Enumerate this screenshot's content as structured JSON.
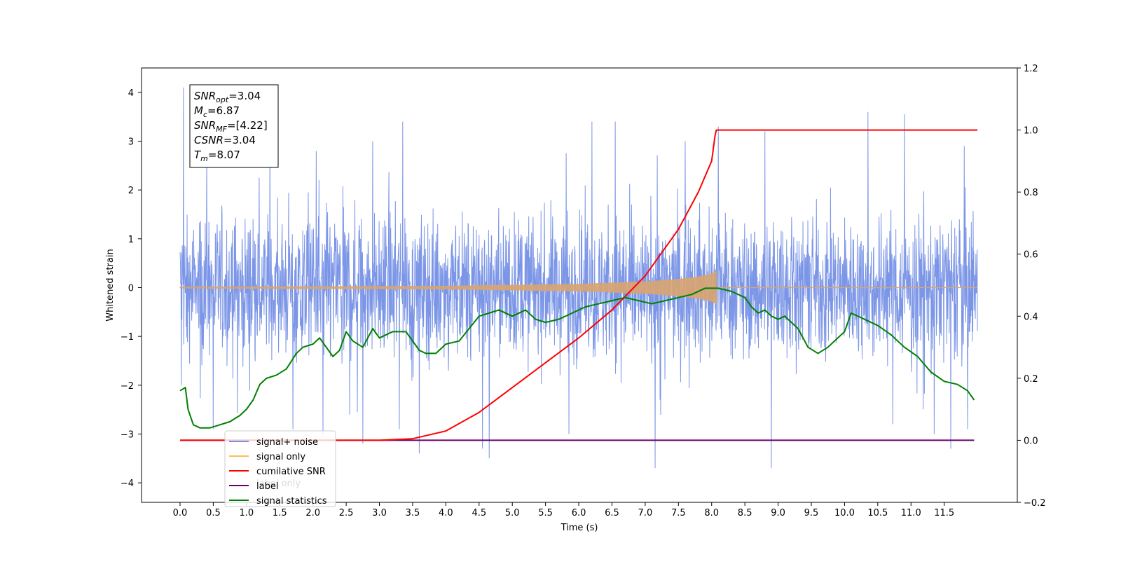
{
  "chart_data": {
    "type": "line",
    "xlabel": "Time (s)",
    "ylabel": "Whitened strain",
    "xlim": [
      -0.58,
      12.6
    ],
    "ylim": [
      -4.4,
      4.5
    ],
    "y2lim": [
      -0.2,
      1.2
    ],
    "x_ticks": [
      "0.0",
      "0.5",
      "1.0",
      "1.5",
      "2.0",
      "2.5",
      "3.0",
      "3.5",
      "4.0",
      "4.5",
      "5.0",
      "5.5",
      "6.0",
      "6.5",
      "7.0",
      "7.5",
      "8.0",
      "8.5",
      "9.0",
      "9.5",
      "10.0",
      "10.5",
      "11.0",
      "11.5"
    ],
    "y_ticks": [
      "−4",
      "−3",
      "−2",
      "−1",
      "0",
      "1",
      "2",
      "3",
      "4"
    ],
    "y2_ticks": [
      "−0.2",
      "0.0",
      "0.2",
      "0.4",
      "0.6",
      "0.8",
      "1.0",
      "1.2"
    ],
    "info_box": [
      {
        "main": "SNR",
        "sub": "opt",
        "rest": "=3.04"
      },
      {
        "main": "M",
        "sub": "c",
        "rest": "=6.87"
      },
      {
        "main": "SNR",
        "sub": "MF",
        "rest": "=[4.22]"
      },
      {
        "main": "CSNR",
        "sub": "",
        "rest": "=3.04"
      },
      {
        "main": "T",
        "sub": "m",
        "rest": "=8.07"
      }
    ],
    "legend": [
      {
        "label": "signal+ noise",
        "color": "#7590e6"
      },
      {
        "label": "signal only",
        "color": "#ffc04d"
      },
      {
        "label": "cumilative SNR",
        "color": "#ff0000"
      },
      {
        "label": "label",
        "color": "#6a006a"
      },
      {
        "label": "signal statistics",
        "color": "#008000"
      }
    ],
    "legend_hidden_text": "label only",
    "noise_series": {
      "name": "signal+ noise",
      "color": "#7590e6",
      "x_start": 0.0,
      "x_end": 12.0,
      "core_amplitude": 1.4,
      "spikes": [
        [
          0.05,
          4.1
        ],
        [
          0.02,
          -2.0
        ],
        [
          0.4,
          2.8
        ],
        [
          0.5,
          -2.9
        ],
        [
          1.35,
          3.2
        ],
        [
          1.7,
          -2.9
        ],
        [
          2.05,
          2.8
        ],
        [
          2.15,
          -3.0
        ],
        [
          2.55,
          -2.6
        ],
        [
          2.75,
          -3.2
        ],
        [
          2.9,
          3.0
        ],
        [
          3.3,
          -2.9
        ],
        [
          3.35,
          3.4
        ],
        [
          3.6,
          -3.4
        ],
        [
          4.55,
          -3.3
        ],
        [
          4.65,
          -3.5
        ],
        [
          5.85,
          -3.0
        ],
        [
          6.2,
          3.4
        ],
        [
          6.55,
          3.4
        ],
        [
          7.15,
          -3.7
        ],
        [
          7.6,
          3.0
        ],
        [
          8.1,
          3.3
        ],
        [
          8.9,
          -3.7
        ],
        [
          8.8,
          3.2
        ],
        [
          10.35,
          3.6
        ],
        [
          10.9,
          3.55
        ],
        [
          11.35,
          -3.0
        ],
        [
          11.6,
          -3.3
        ],
        [
          11.8,
          2.9
        ],
        [
          11.85,
          -2.9
        ]
      ]
    },
    "signal_only": {
      "name": "signal only",
      "color": "#d9a470",
      "x": [
        0.0,
        4.0,
        6.0,
        7.0,
        7.5,
        7.8,
        8.0,
        8.07
      ],
      "amplitude": [
        0.01,
        0.03,
        0.07,
        0.12,
        0.17,
        0.22,
        0.28,
        0.34
      ],
      "end_x": 12.0
    },
    "cumulative_snr": {
      "name": "cumilative SNR",
      "color": "#ff0000",
      "axis": "right",
      "x": [
        0.0,
        3.0,
        3.5,
        4.0,
        4.5,
        5.0,
        5.5,
        6.0,
        6.5,
        7.0,
        7.5,
        7.8,
        8.0,
        8.05,
        8.07,
        8.1,
        12.0
      ],
      "y": [
        0.0,
        0.0,
        0.005,
        0.03,
        0.09,
        0.17,
        0.25,
        0.33,
        0.42,
        0.53,
        0.68,
        0.8,
        0.9,
        0.98,
        1.0,
        1.0,
        1.0
      ]
    },
    "label_series": {
      "name": "label",
      "color": "#6a006a",
      "axis": "right",
      "x": [
        0.0,
        11.95
      ],
      "y": [
        0.0,
        0.0
      ]
    },
    "signal_statistics": {
      "name": "signal statistics",
      "color": "#008000",
      "axis": "right",
      "x": [
        0.0,
        0.08,
        0.12,
        0.2,
        0.3,
        0.45,
        0.6,
        0.75,
        0.9,
        1.0,
        1.1,
        1.2,
        1.3,
        1.45,
        1.6,
        1.75,
        1.85,
        2.0,
        2.1,
        2.2,
        2.3,
        2.4,
        2.5,
        2.6,
        2.75,
        2.9,
        3.0,
        3.2,
        3.4,
        3.6,
        3.7,
        3.85,
        4.0,
        4.2,
        4.35,
        4.5,
        4.65,
        4.8,
        5.0,
        5.2,
        5.35,
        5.5,
        5.7,
        5.9,
        6.1,
        6.3,
        6.5,
        6.7,
        6.9,
        7.1,
        7.3,
        7.5,
        7.7,
        7.9,
        8.1,
        8.3,
        8.5,
        8.6,
        8.7,
        8.8,
        8.9,
        9.0,
        9.1,
        9.3,
        9.45,
        9.6,
        9.75,
        9.9,
        10.0,
        10.1,
        10.3,
        10.5,
        10.7,
        10.9,
        11.1,
        11.3,
        11.5,
        11.7,
        11.85,
        11.95
      ],
      "y": [
        0.16,
        0.17,
        0.1,
        0.05,
        0.04,
        0.04,
        0.05,
        0.06,
        0.08,
        0.1,
        0.13,
        0.18,
        0.2,
        0.21,
        0.23,
        0.28,
        0.3,
        0.31,
        0.33,
        0.3,
        0.27,
        0.29,
        0.35,
        0.32,
        0.3,
        0.36,
        0.33,
        0.35,
        0.35,
        0.29,
        0.28,
        0.28,
        0.31,
        0.32,
        0.36,
        0.4,
        0.41,
        0.42,
        0.4,
        0.42,
        0.39,
        0.38,
        0.39,
        0.41,
        0.43,
        0.44,
        0.45,
        0.46,
        0.45,
        0.44,
        0.45,
        0.46,
        0.47,
        0.49,
        0.49,
        0.48,
        0.46,
        0.43,
        0.41,
        0.42,
        0.4,
        0.39,
        0.4,
        0.36,
        0.3,
        0.28,
        0.3,
        0.33,
        0.35,
        0.41,
        0.39,
        0.37,
        0.34,
        0.3,
        0.27,
        0.22,
        0.19,
        0.18,
        0.16,
        0.13
      ]
    }
  }
}
